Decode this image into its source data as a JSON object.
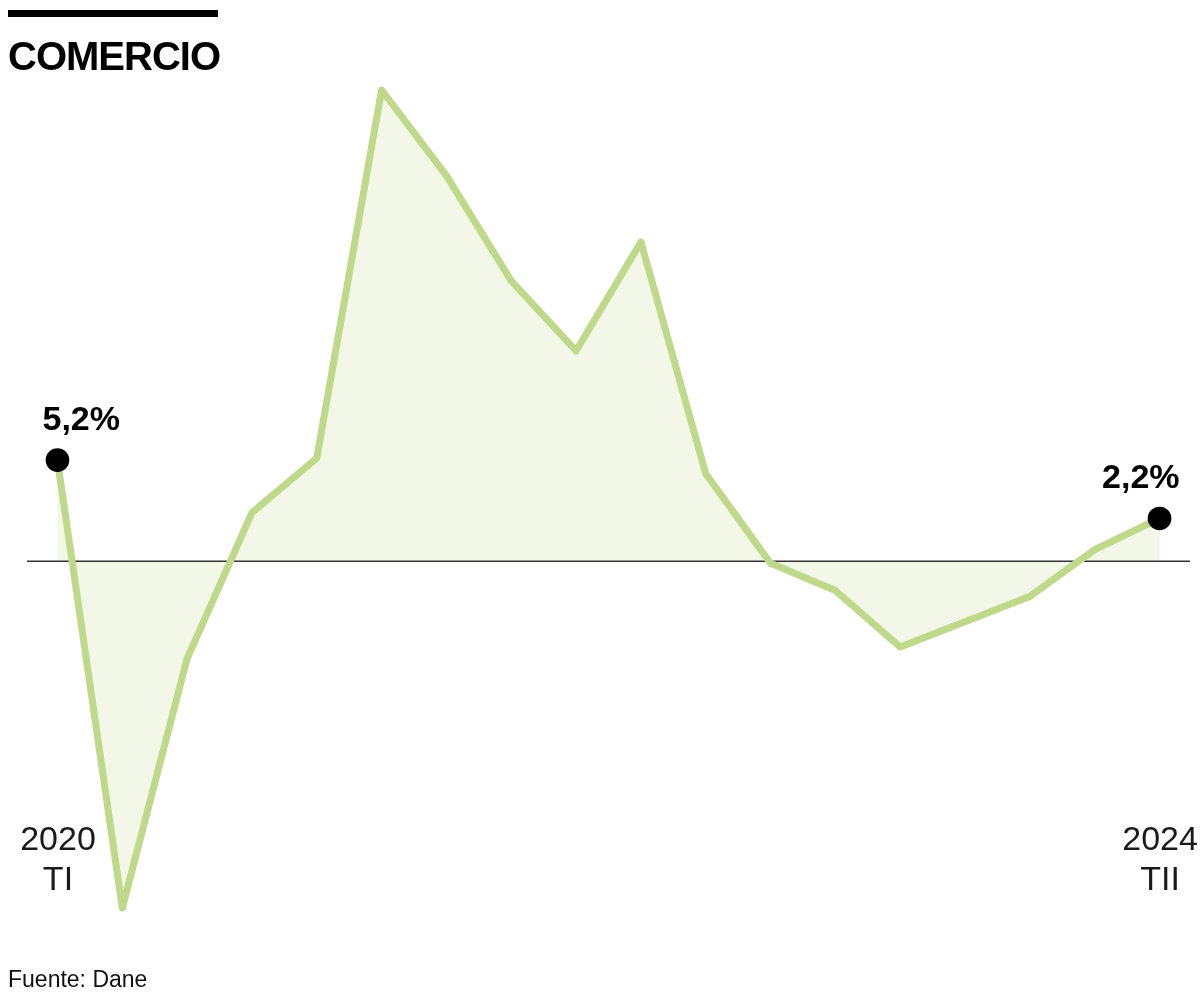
{
  "chart_data": {
    "type": "area",
    "title": "COMERCIO",
    "categories": [
      "2020\nTI",
      null,
      null,
      null,
      null,
      null,
      null,
      null,
      null,
      null,
      null,
      null,
      null,
      null,
      null,
      null,
      null,
      "2024\nTII"
    ],
    "series": [
      {
        "color": "#bfd98a",
        "values": [
          5.2,
          -17.8,
          -5.0,
          2.5,
          5.3,
          24.2,
          19.8,
          14.4,
          10.8,
          16.4,
          4.5,
          -0.1,
          -1.5,
          -4.4,
          -3.1,
          -1.8,
          0.6,
          2.2
        ]
      },
      {
        "type": "scatter",
        "color": "#000000",
        "marker": "circle",
        "values": [
          5.2,
          null,
          null,
          null,
          null,
          null,
          null,
          null,
          null,
          null,
          null,
          null,
          null,
          null,
          null,
          null,
          null,
          2.2
        ],
        "value_labels": [
          "5,2%",
          null,
          null,
          null,
          null,
          null,
          null,
          null,
          null,
          null,
          null,
          null,
          null,
          null,
          null,
          null,
          null,
          "2,2%"
        ]
      }
    ],
    "ref_lines": [
      {
        "axis": "y",
        "value": 0,
        "color": "#333333"
      }
    ],
    "tick_labels": "x",
    "grid": false,
    "annotations": [
      "Fuente: Dane"
    ]
  }
}
